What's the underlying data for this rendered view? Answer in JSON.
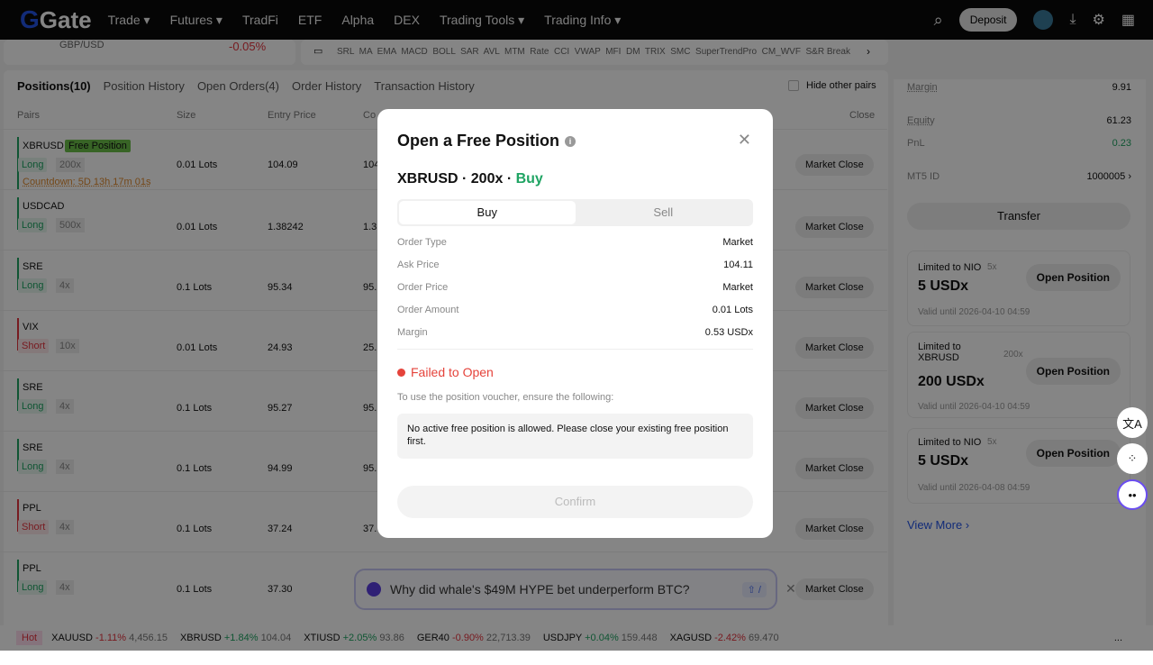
{
  "nav": {
    "logo": "Gate",
    "items": [
      "Trade",
      "Futures",
      "TradFi",
      "ETF",
      "Alpha",
      "DEX",
      "Trading Tools",
      "Trading Info"
    ],
    "deposit": "Deposit"
  },
  "top": {
    "pair": "GBP/USD",
    "change": "-0.05%",
    "indicators": "SRL  MA  EMA  MACD  BOLL  SAR  AVL  MTM  Rate  CCI  VWAP  MFI  DM  TRIX  SMC  SuperTrendPro  CM_WVF  S&R Break"
  },
  "tabs": [
    "Positions(10)",
    "Position History",
    "Open Orders(4)",
    "Order History",
    "Transaction History"
  ],
  "hide_other_pairs": "Hide other pairs",
  "columns": {
    "pairs": "Pairs",
    "size": "Size",
    "entry": "Entry Price",
    "cur": "Co",
    "close": "Close"
  },
  "rows": [
    {
      "pair": "XBRUSD",
      "badge": "Free Position",
      "side": "Long",
      "lev": "200x",
      "size": "0.01 Lots",
      "entry": "104.09",
      "cur": "104",
      "countdown": "Countdown: 5D 13h 17m 01s",
      "close": "Market Close"
    },
    {
      "pair": "USDCAD",
      "side": "Long",
      "lev": "500x",
      "size": "0.01 Lots",
      "entry": "1.38242",
      "cur": "1.3",
      "close": "Market Close"
    },
    {
      "pair": "SRE",
      "side": "Long",
      "lev": "4x",
      "size": "0.1 Lots",
      "entry": "95.34",
      "cur": "95.",
      "close": "Market Close"
    },
    {
      "pair": "VIX",
      "side": "Short",
      "lev": "10x",
      "size": "0.01 Lots",
      "entry": "24.93",
      "cur": "25.",
      "close": "Market Close"
    },
    {
      "pair": "SRE",
      "side": "Long",
      "lev": "4x",
      "size": "0.1 Lots",
      "entry": "95.27",
      "cur": "95.",
      "close": "Market Close"
    },
    {
      "pair": "SRE",
      "side": "Long",
      "lev": "4x",
      "size": "0.1 Lots",
      "entry": "94.99",
      "cur": "95.",
      "close": "Market Close"
    },
    {
      "pair": "PPL",
      "side": "Short",
      "lev": "4x",
      "size": "0.1 Lots",
      "entry": "37.24",
      "cur": "37.",
      "close": "Market Close"
    },
    {
      "pair": "PPL",
      "side": "Long",
      "lev": "4x",
      "size": "0.1 Lots",
      "entry": "37.30",
      "cur": "",
      "close": "Market Close"
    }
  ],
  "account": {
    "margin_label": "Margin",
    "margin": "9.91",
    "equity_label": "Equity",
    "equity": "61.23",
    "pnl_label": "PnL",
    "pnl": "0.23",
    "mt5_label": "MT5 ID",
    "mt5": "1000005",
    "transfer": "Transfer",
    "view_more": "View More"
  },
  "vouchers": [
    {
      "limit": "Limited to NIO",
      "lev": "5x",
      "amount": "5 USDx",
      "valid": "Valid until 2026-04-10 04:59",
      "button": "Open Position"
    },
    {
      "limit": "Limited to XBRUSD",
      "lev": "200x",
      "amount": "200 USDx",
      "valid": "Valid until 2026-04-10 04:59",
      "button": "Open Position"
    },
    {
      "limit": "Limited to NIO",
      "lev": "5x",
      "amount": "5 USDx",
      "valid": "Valid until 2026-04-08 04:59",
      "button": "Open Position"
    }
  ],
  "ticker": {
    "hot": "Hot",
    "items": [
      {
        "sym": "XAUUSD",
        "chg": "-1.11%",
        "price": "4,456.15",
        "dir": "dn"
      },
      {
        "sym": "XBRUSD",
        "chg": "+1.84%",
        "price": "104.04",
        "dir": "up"
      },
      {
        "sym": "XTIUSD",
        "chg": "+2.05%",
        "price": "93.86",
        "dir": "up"
      },
      {
        "sym": "GER40",
        "chg": "-0.90%",
        "price": "22,713.39",
        "dir": "dn"
      },
      {
        "sym": "USDJPY",
        "chg": "+0.04%",
        "price": "159.448",
        "dir": "up"
      },
      {
        "sym": "XAGUSD",
        "chg": "-2.42%",
        "price": "69.470",
        "dir": "dn"
      }
    ],
    "more": "..."
  },
  "chat": {
    "prompt": "Why did whale's $49M HYPE bet underperform BTC?",
    "shortcut": "⇧ /"
  },
  "modal": {
    "title": "Open a Free Position",
    "pair": "XBRUSD",
    "lev": "200x",
    "direction": "Buy",
    "buy": "Buy",
    "sell": "Sell",
    "rows": [
      {
        "k": "Order Type",
        "v": "Market"
      },
      {
        "k": "Ask Price",
        "v": "104.11"
      },
      {
        "k": "Order Price",
        "v": "Market"
      },
      {
        "k": "Order Amount",
        "v": "0.01 Lots"
      },
      {
        "k": "Margin",
        "v": "0.53 USDx"
      }
    ],
    "error_title": "Failed to Open",
    "error_intro": "To use the position voucher, ensure the following:",
    "error_detail": "No active free position is allowed. Please close your existing free position first.",
    "confirm": "Confirm"
  },
  "colors": {
    "brand": "#2354e6",
    "up": "#1fa463",
    "down": "#e5343f",
    "error": "#e5433b"
  }
}
